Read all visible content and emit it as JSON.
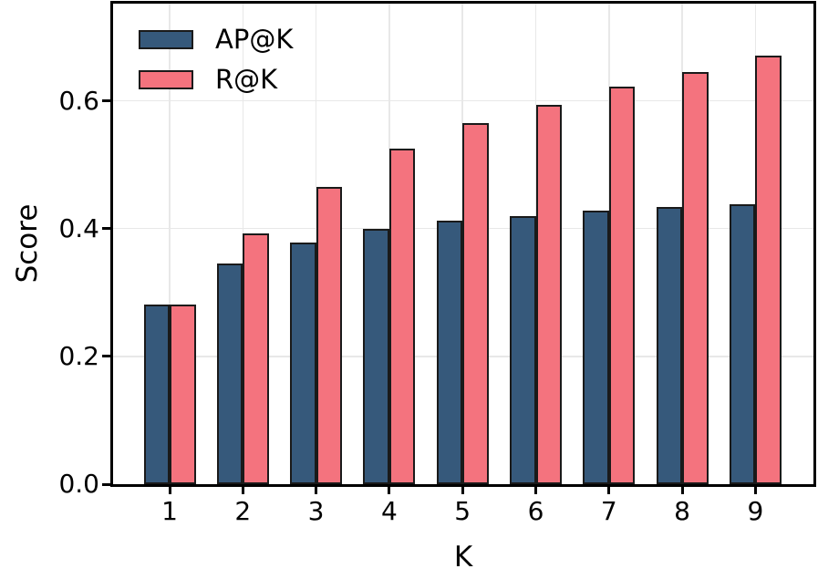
{
  "chart_data": {
    "type": "bar",
    "categories": [
      "1",
      "2",
      "3",
      "4",
      "5",
      "6",
      "7",
      "8",
      "9"
    ],
    "series": [
      {
        "name": "AP@K",
        "color": "#36597B",
        "values": [
          0.281,
          0.345,
          0.378,
          0.399,
          0.412,
          0.42,
          0.428,
          0.434,
          0.438
        ]
      },
      {
        "name": "R@K",
        "color": "#F4737E",
        "values": [
          0.281,
          0.393,
          0.465,
          0.525,
          0.565,
          0.593,
          0.622,
          0.645,
          0.67
        ]
      }
    ],
    "title": "",
    "xlabel": "K",
    "ylabel": "Score",
    "ylim": [
      0,
      0.752
    ],
    "yticks": [
      {
        "value": 0.0,
        "label": "0.0"
      },
      {
        "value": 0.2,
        "label": "0.2"
      },
      {
        "value": 0.4,
        "label": "0.4"
      },
      {
        "value": 0.6,
        "label": "0.6"
      }
    ],
    "grid": true,
    "legend_position": "upper-left",
    "colors": {
      "bar_edge": "#1A1A1A",
      "grid": "#E8E8E8",
      "axis": "#000000",
      "background": "#FFFFFF"
    }
  }
}
